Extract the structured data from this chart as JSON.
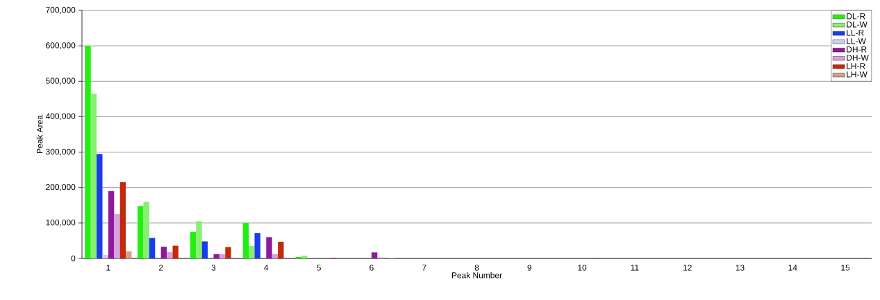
{
  "chart_data": {
    "type": "bar",
    "xlabel": "Peak Number",
    "ylabel": "Peak Area",
    "categories": [
      "1",
      "2",
      "3",
      "4",
      "5",
      "6",
      "7",
      "8",
      "9",
      "10",
      "11",
      "12",
      "13",
      "14",
      "15"
    ],
    "series": [
      {
        "name": "DL-R",
        "color": "#22ee11",
        "values": [
          600000,
          148000,
          75000,
          100000,
          4000,
          0,
          0,
          0,
          0,
          0,
          0,
          0,
          0,
          0,
          0
        ]
      },
      {
        "name": "DL-W",
        "color": "#88f070",
        "values": [
          465000,
          160000,
          105000,
          35000,
          8000,
          0,
          0,
          0,
          0,
          0,
          0,
          0,
          0,
          0,
          0
        ]
      },
      {
        "name": "LL-R",
        "color": "#1a3cee",
        "values": [
          295000,
          58000,
          48000,
          72000,
          0,
          0,
          0,
          0,
          0,
          0,
          0,
          0,
          0,
          0,
          0
        ]
      },
      {
        "name": "LL-W",
        "color": "#ccccf4",
        "values": [
          10000,
          0,
          0,
          0,
          0,
          0,
          0,
          0,
          0,
          0,
          0,
          0,
          0,
          0,
          0
        ]
      },
      {
        "name": "DH-R",
        "color": "#8e1a9a",
        "values": [
          190000,
          33000,
          12000,
          60000,
          0,
          17000,
          0,
          0,
          0,
          0,
          0,
          0,
          0,
          0,
          0
        ]
      },
      {
        "name": "DH-W",
        "color": "#d8a0e0",
        "values": [
          125000,
          18000,
          12000,
          12000,
          0,
          3000,
          0,
          0,
          0,
          0,
          0,
          0,
          0,
          0,
          0
        ]
      },
      {
        "name": "LH-R",
        "color": "#c22a0a",
        "values": [
          215000,
          36000,
          32000,
          47000,
          2000,
          0,
          0,
          0,
          0,
          1000,
          0,
          0,
          0,
          0,
          0
        ]
      },
      {
        "name": "LH-W",
        "color": "#d4a088",
        "values": [
          20000,
          0,
          0,
          0,
          0,
          2000,
          0,
          0,
          0,
          0,
          0,
          0,
          0,
          0,
          0
        ]
      }
    ],
    "ylim": [
      0,
      700000
    ],
    "yticks": [
      {
        "value": 0,
        "label": "0"
      },
      {
        "value": 100000,
        "label": "100,000"
      },
      {
        "value": 200000,
        "label": "200,000"
      },
      {
        "value": 300000,
        "label": "300,000"
      },
      {
        "value": 400000,
        "label": "400,000"
      },
      {
        "value": 500000,
        "label": "500,000"
      },
      {
        "value": 600000,
        "label": "600,000"
      },
      {
        "value": 700000,
        "label": "700,000"
      }
    ],
    "grid": "y",
    "legend": "top right"
  }
}
